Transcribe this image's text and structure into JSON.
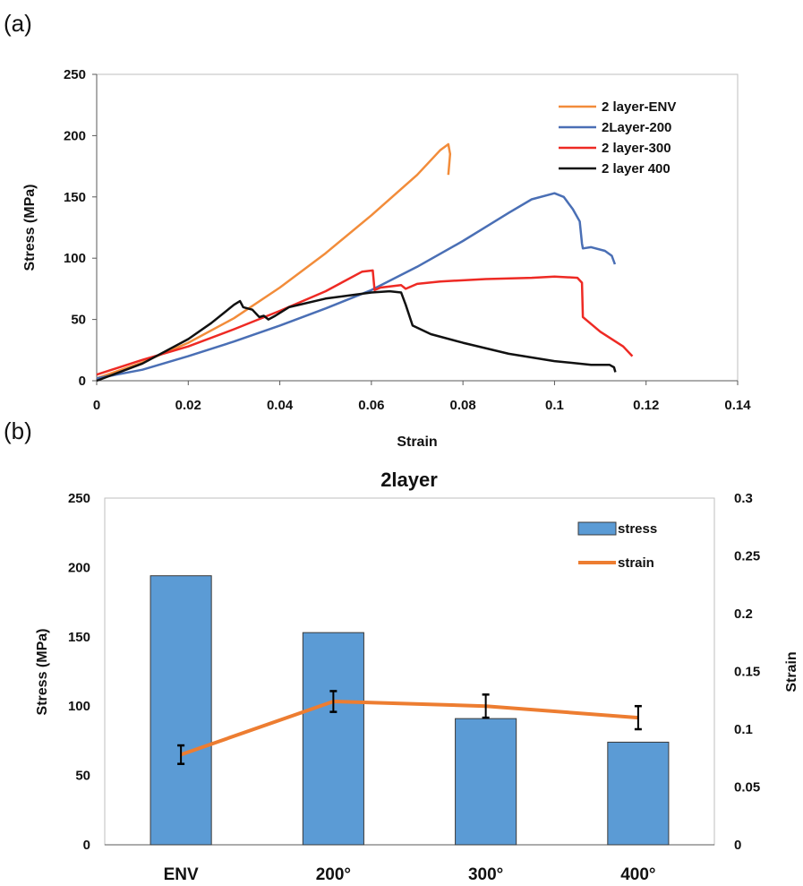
{
  "panel_labels": {
    "a": "(a)",
    "b": "(b)"
  },
  "chart_data": [
    {
      "type": "line",
      "title": "",
      "xlabel": "Strain",
      "ylabel": "Stress (MPa)",
      "xlim": [
        0,
        0.14
      ],
      "ylim": [
        0,
        250
      ],
      "xticks": [
        0,
        0.02,
        0.04,
        0.06,
        0.08,
        0.1,
        0.12,
        0.14
      ],
      "xtick_labels": [
        "0",
        "0.02",
        "0.04",
        "0.06",
        "0.08",
        "0.1",
        "0.12",
        "0.14"
      ],
      "yticks": [
        0,
        50,
        100,
        150,
        200,
        250
      ],
      "ytick_labels": [
        "0",
        "50",
        "100",
        "150",
        "200",
        "250"
      ],
      "grid": false,
      "legend_position": "top-right",
      "series": [
        {
          "name": "2 layer-ENV",
          "color": "#F28C3A",
          "points": [
            [
              0,
              2
            ],
            [
              0.01,
              15
            ],
            [
              0.02,
              31
            ],
            [
              0.03,
              51
            ],
            [
              0.04,
              76
            ],
            [
              0.05,
              104
            ],
            [
              0.06,
              135
            ],
            [
              0.07,
              168
            ],
            [
              0.075,
              188
            ],
            [
              0.0768,
              193
            ],
            [
              0.0772,
              185
            ],
            [
              0.0768,
              168
            ]
          ]
        },
        {
          "name": "2Layer-200",
          "color": "#4A6FB5",
          "points": [
            [
              0,
              2
            ],
            [
              0.01,
              9
            ],
            [
              0.02,
              20
            ],
            [
              0.03,
              32
            ],
            [
              0.04,
              45
            ],
            [
              0.05,
              59
            ],
            [
              0.06,
              74
            ],
            [
              0.07,
              93
            ],
            [
              0.08,
              114
            ],
            [
              0.09,
              137
            ],
            [
              0.095,
              148
            ],
            [
              0.099,
              152
            ],
            [
              0.1,
              153
            ],
            [
              0.102,
              150
            ],
            [
              0.104,
              140
            ],
            [
              0.1055,
              130
            ],
            [
              0.106,
              112
            ],
            [
              0.1062,
              108
            ],
            [
              0.108,
              109
            ],
            [
              0.111,
              106
            ],
            [
              0.1125,
              102
            ],
            [
              0.1132,
              95
            ]
          ]
        },
        {
          "name": "2 layer-300",
          "color": "#EE2A24",
          "points": [
            [
              0,
              5
            ],
            [
              0.01,
              17
            ],
            [
              0.02,
              28
            ],
            [
              0.03,
              42
            ],
            [
              0.04,
              57
            ],
            [
              0.05,
              73
            ],
            [
              0.058,
              89
            ],
            [
              0.0603,
              90
            ],
            [
              0.0607,
              74
            ],
            [
              0.062,
              76
            ],
            [
              0.0665,
              78
            ],
            [
              0.0675,
              75
            ],
            [
              0.07,
              79
            ],
            [
              0.075,
              81
            ],
            [
              0.085,
              83
            ],
            [
              0.095,
              84
            ],
            [
              0.1,
              85
            ],
            [
              0.105,
              84
            ],
            [
              0.106,
              80
            ],
            [
              0.1062,
              52
            ],
            [
              0.11,
              40
            ],
            [
              0.115,
              28
            ],
            [
              0.117,
              20
            ]
          ]
        },
        {
          "name": "2 layer 400",
          "color": "#111111",
          "points": [
            [
              0,
              0
            ],
            [
              0.01,
              14
            ],
            [
              0.02,
              34
            ],
            [
              0.025,
              47
            ],
            [
              0.03,
              62
            ],
            [
              0.0313,
              65
            ],
            [
              0.032,
              60
            ],
            [
              0.034,
              58
            ],
            [
              0.0355,
              52
            ],
            [
              0.0365,
              53
            ],
            [
              0.0375,
              50
            ],
            [
              0.039,
              53
            ],
            [
              0.042,
              60
            ],
            [
              0.05,
              67
            ],
            [
              0.06,
              72
            ],
            [
              0.064,
              73
            ],
            [
              0.0665,
              72
            ],
            [
              0.0675,
              62
            ],
            [
              0.069,
              45
            ],
            [
              0.073,
              38
            ],
            [
              0.08,
              31
            ],
            [
              0.09,
              22
            ],
            [
              0.1,
              16
            ],
            [
              0.108,
              13
            ],
            [
              0.112,
              13
            ],
            [
              0.113,
              11
            ],
            [
              0.1133,
              7
            ]
          ]
        }
      ]
    },
    {
      "type": "bar",
      "title": "2layer",
      "xlabel": "",
      "ylabel": "Stress (MPa)",
      "y2label": "Strain",
      "categories": [
        "ENV",
        "200°",
        "300°",
        "400°"
      ],
      "ylim": [
        0,
        250
      ],
      "y2lim": [
        0,
        0.3
      ],
      "yticks": [
        0,
        50,
        100,
        150,
        200,
        250
      ],
      "ytick_labels": [
        "0",
        "50",
        "100",
        "150",
        "200",
        "250"
      ],
      "y2ticks": [
        0,
        0.05,
        0.1,
        0.15,
        0.2,
        0.25,
        0.3
      ],
      "y2tick_labels": [
        "0",
        "0.05",
        "0.1",
        "0.15",
        "0.2",
        "0.25",
        "0.3"
      ],
      "grid": false,
      "legend_position": "top-right",
      "series": [
        {
          "name": "stress",
          "kind": "bar",
          "axis": "left",
          "color": "#5B9BD5",
          "values": [
            194,
            153,
            91,
            74
          ]
        },
        {
          "name": "strain",
          "kind": "line",
          "axis": "right",
          "color": "#ED7D31",
          "values": [
            0.078,
            0.124,
            0.12,
            0.11
          ],
          "errors": [
            0.008,
            0.009,
            0.01,
            0.01
          ]
        }
      ]
    }
  ]
}
